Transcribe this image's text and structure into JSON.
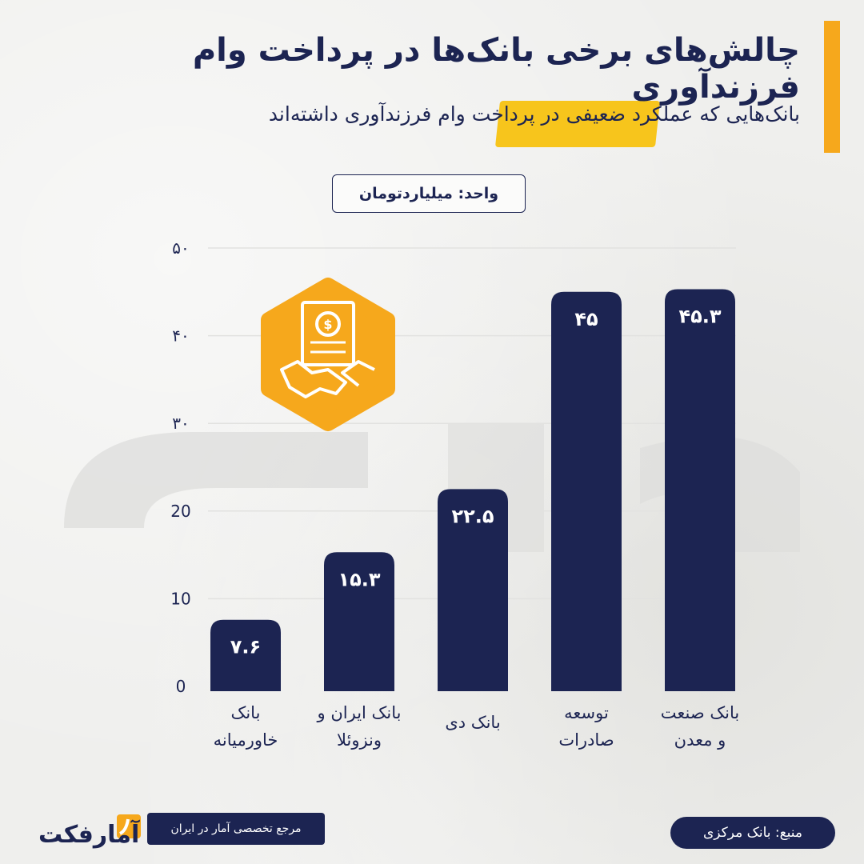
{
  "header": {
    "title": "چالش‌های برخی بانک‌ها در پرداخت وام فرزندآوری",
    "subtitle": "بانک‌هایی که عملکرد ضعیفی در پرداخت وام فرزندآوری داشته‌اند"
  },
  "unit_label": "واحد: میلیاردتومان",
  "footer": {
    "tagline": "مرجع تخصصی آمار در ایران",
    "source": "منبع: بانک مرکزی",
    "logo_text": "آمارفکت"
  },
  "colors": {
    "bar": "#1c2452",
    "accent": "#f6a81c",
    "highlight": "#f7c51c",
    "icon_badge": "#f6a81c"
  },
  "icon": "contract-handshake-icon",
  "chart_data": {
    "type": "bar",
    "categories": [
      [
        "بانک",
        "خاورمیانه"
      ],
      [
        "بانک ایران و",
        "ونزوئلا"
      ],
      [
        "بانک دی"
      ],
      [
        "توسعه",
        "صادرات"
      ],
      [
        "بانک صنعت",
        "و معدن"
      ]
    ],
    "values": [
      7.6,
      15.3,
      22.5,
      45,
      45.3
    ],
    "value_labels": [
      "۷.۶",
      "۱۵.۳",
      "۲۲.۵",
      "۴۵",
      "۴۵.۳"
    ],
    "ytick_labels": [
      "0",
      "10",
      "20",
      "۳۰",
      "۴۰",
      "۵۰"
    ],
    "ylim": [
      0,
      50
    ],
    "grid": true
  }
}
